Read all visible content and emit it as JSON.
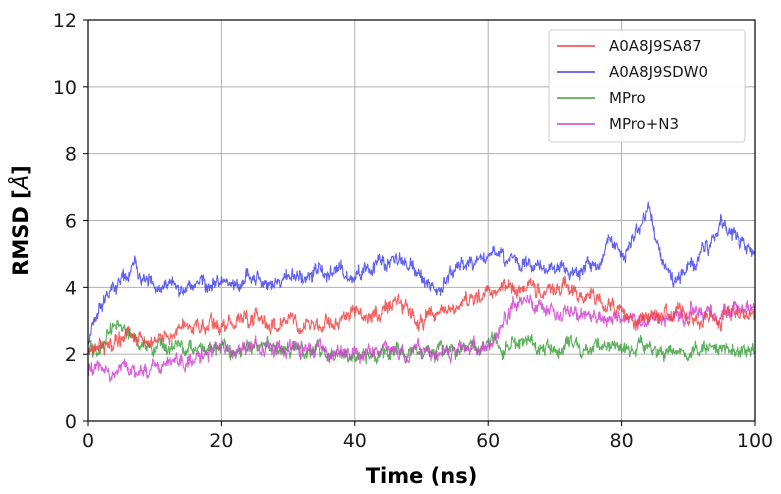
{
  "chart_data": {
    "type": "line",
    "xlabel": "Time (ns)",
    "ylabel_main": "RMSD [",
    "ylabel_unit": "Å",
    "ylabel_close": "]",
    "xlim": [
      0,
      100
    ],
    "ylim": [
      0,
      12
    ],
    "xticks": [
      0,
      20,
      40,
      60,
      80,
      100
    ],
    "yticks": [
      0,
      2,
      4,
      6,
      8,
      10,
      12
    ],
    "grid": true,
    "legend_position": "top-right",
    "series": [
      {
        "name": "A0A8J9SA87",
        "color": "#f04040",
        "keypoints": [
          [
            0,
            2.0
          ],
          [
            2,
            2.3
          ],
          [
            5,
            2.4
          ],
          [
            8,
            2.5
          ],
          [
            12,
            2.5
          ],
          [
            15,
            2.8
          ],
          [
            20,
            2.9
          ],
          [
            25,
            3.0
          ],
          [
            30,
            2.9
          ],
          [
            35,
            2.8
          ],
          [
            40,
            3.2
          ],
          [
            43,
            3.1
          ],
          [
            46,
            3.6
          ],
          [
            50,
            3.0
          ],
          [
            52,
            3.3
          ],
          [
            55,
            3.5
          ],
          [
            58,
            3.7
          ],
          [
            60,
            3.9
          ],
          [
            65,
            3.9
          ],
          [
            70,
            4.0
          ],
          [
            73,
            3.9
          ],
          [
            76,
            3.6
          ],
          [
            80,
            3.4
          ],
          [
            82,
            2.8
          ],
          [
            85,
            3.2
          ],
          [
            90,
            3.1
          ],
          [
            95,
            3.0
          ],
          [
            100,
            3.2
          ]
        ]
      },
      {
        "name": "A0A8J9SDW0",
        "color": "#4040e8",
        "keypoints": [
          [
            0,
            2.4
          ],
          [
            1,
            3.0
          ],
          [
            2,
            3.4
          ],
          [
            3,
            3.8
          ],
          [
            5,
            4.2
          ],
          [
            7,
            4.7
          ],
          [
            8,
            4.4
          ],
          [
            10,
            4.1
          ],
          [
            15,
            4.0
          ],
          [
            20,
            4.1
          ],
          [
            25,
            4.2
          ],
          [
            30,
            4.3
          ],
          [
            35,
            4.5
          ],
          [
            40,
            4.4
          ],
          [
            43,
            4.6
          ],
          [
            47,
            4.8
          ],
          [
            50,
            4.3
          ],
          [
            52,
            3.8
          ],
          [
            55,
            4.6
          ],
          [
            60,
            4.8
          ],
          [
            63,
            4.9
          ],
          [
            66,
            4.8
          ],
          [
            70,
            4.5
          ],
          [
            74,
            4.5
          ],
          [
            77,
            4.8
          ],
          [
            78,
            5.5
          ],
          [
            80,
            4.9
          ],
          [
            82,
            5.6
          ],
          [
            84,
            6.3
          ],
          [
            86,
            4.8
          ],
          [
            88,
            4.0
          ],
          [
            90,
            4.5
          ],
          [
            93,
            5.1
          ],
          [
            95,
            5.8
          ],
          [
            97,
            5.5
          ],
          [
            100,
            5.0
          ]
        ]
      },
      {
        "name": "MPro",
        "color": "#3aa03a",
        "keypoints": [
          [
            0,
            2.0
          ],
          [
            2,
            2.2
          ],
          [
            3,
            2.5
          ],
          [
            4,
            2.8
          ],
          [
            6,
            2.5
          ],
          [
            10,
            2.3
          ],
          [
            15,
            2.1
          ],
          [
            20,
            2.2
          ],
          [
            30,
            2.1
          ],
          [
            40,
            2.0
          ],
          [
            50,
            2.1
          ],
          [
            60,
            2.2
          ],
          [
            61,
            2.4
          ],
          [
            62,
            2.2
          ],
          [
            70,
            2.2
          ],
          [
            80,
            2.1
          ],
          [
            90,
            2.1
          ],
          [
            100,
            2.2
          ]
        ]
      },
      {
        "name": "MPro+N3",
        "color": "#d040d0",
        "keypoints": [
          [
            0,
            1.5
          ],
          [
            5,
            1.5
          ],
          [
            10,
            1.5
          ],
          [
            12,
            1.7
          ],
          [
            15,
            1.9
          ],
          [
            20,
            2.1
          ],
          [
            30,
            2.2
          ],
          [
            40,
            2.1
          ],
          [
            50,
            2.0
          ],
          [
            55,
            2.1
          ],
          [
            60,
            2.2
          ],
          [
            62,
            2.8
          ],
          [
            64,
            3.5
          ],
          [
            68,
            3.5
          ],
          [
            72,
            3.2
          ],
          [
            76,
            3.1
          ],
          [
            80,
            3.1
          ],
          [
            84,
            3.0
          ],
          [
            90,
            3.2
          ],
          [
            95,
            3.3
          ],
          [
            100,
            3.4
          ]
        ]
      }
    ]
  }
}
